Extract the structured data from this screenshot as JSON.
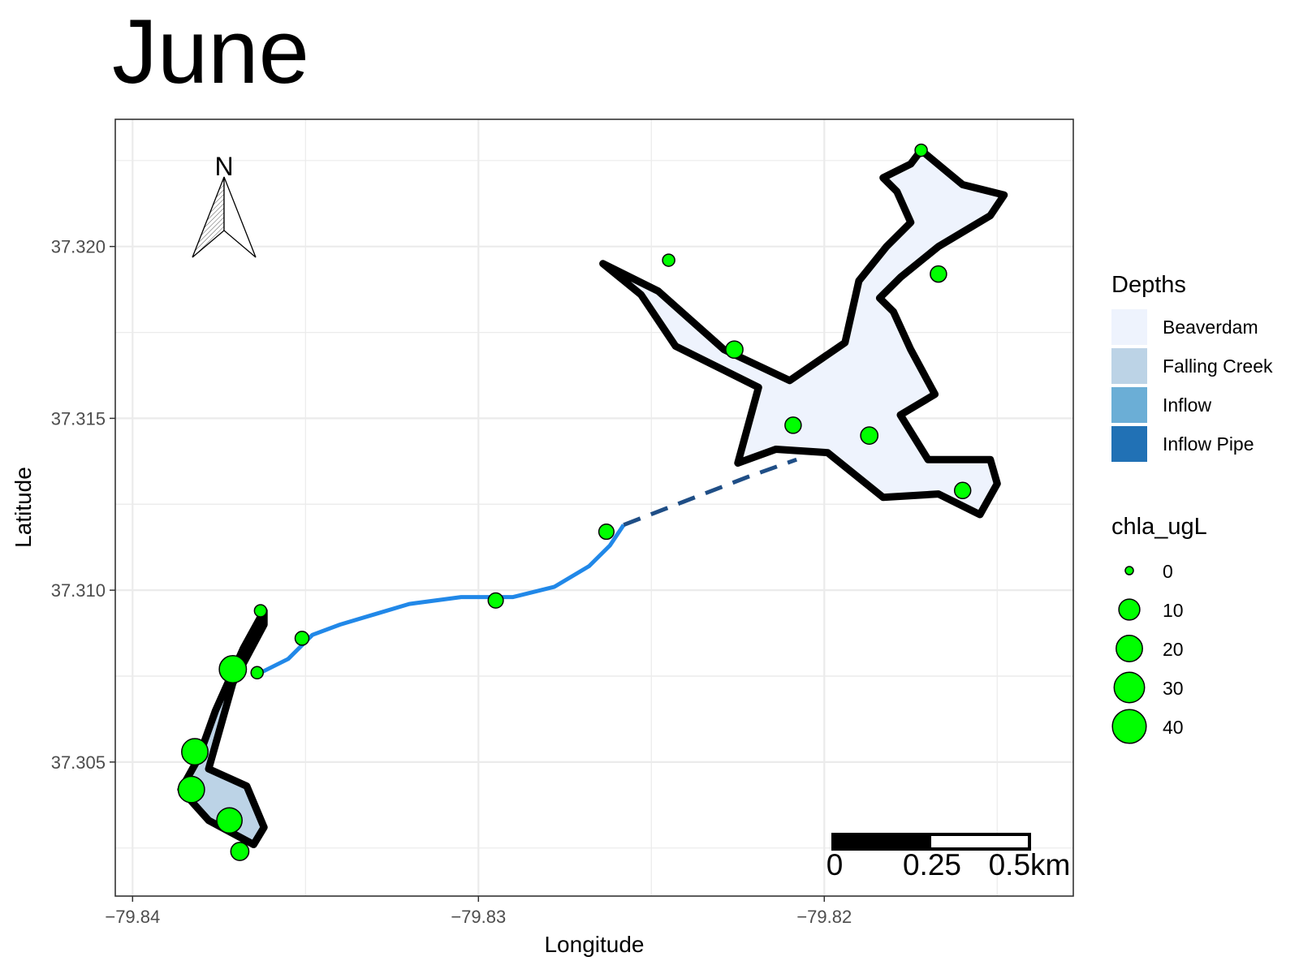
{
  "title": "June",
  "axes": {
    "x_label": "Longitude",
    "y_label": "Latitude",
    "x_ticks": [
      {
        "value": -79.84,
        "label": "−79.84"
      },
      {
        "value": -79.83,
        "label": "−79.83"
      },
      {
        "value": -79.82,
        "label": "−79.82"
      }
    ],
    "y_ticks": [
      {
        "value": 37.32,
        "label": "37.320"
      },
      {
        "value": 37.315,
        "label": "37.315"
      },
      {
        "value": 37.31,
        "label": "37.310"
      },
      {
        "value": 37.305,
        "label": "37.305"
      }
    ],
    "xlim": [
      -79.8405,
      -79.8128
    ],
    "ylim": [
      37.3011,
      37.3237
    ],
    "grid": true
  },
  "north_arrow": {
    "label": "N"
  },
  "scale_bar": {
    "labels": [
      "0",
      "0.25",
      "0.5km"
    ]
  },
  "legend": {
    "depths": {
      "title": "Depths",
      "items": [
        {
          "label": "Beaverdam",
          "color": "#eef3fd"
        },
        {
          "label": "Falling Creek",
          "color": "#bcd3e6"
        },
        {
          "label": "Inflow",
          "color": "#6baed6"
        },
        {
          "label": "Inflow Pipe",
          "color": "#2171b5"
        }
      ]
    },
    "chla": {
      "title": "chla_ugL",
      "items": [
        {
          "label": "0",
          "value": 0
        },
        {
          "label": "10",
          "value": 10
        },
        {
          "label": "20",
          "value": 20
        },
        {
          "label": "30",
          "value": 30
        },
        {
          "label": "40",
          "value": 40
        }
      ]
    }
  },
  "colors": {
    "point_fill": "#00ff00",
    "outline": "#000000",
    "stream": "#2188e8",
    "pipe": "#1f4e86",
    "grid": "#ebebeb"
  },
  "chart_data": {
    "type": "scatter",
    "map_title": "June",
    "reservoirs": [
      {
        "name": "Beaverdam",
        "polygon": [
          [
            -79.8172,
            37.3228
          ],
          [
            -79.8166,
            37.3223
          ],
          [
            -79.816,
            37.3218
          ],
          [
            -79.8148,
            37.3215
          ],
          [
            -79.8152,
            37.3209
          ],
          [
            -79.8167,
            37.32
          ],
          [
            -79.8178,
            37.3191
          ],
          [
            -79.8184,
            37.3185
          ],
          [
            -79.818,
            37.3181
          ],
          [
            -79.8175,
            37.317
          ],
          [
            -79.8168,
            37.3157
          ],
          [
            -79.8178,
            37.3151
          ],
          [
            -79.817,
            37.3138
          ],
          [
            -79.8152,
            37.3138
          ],
          [
            -79.815,
            37.3131
          ],
          [
            -79.8155,
            37.3122
          ],
          [
            -79.8167,
            37.3128
          ],
          [
            -79.8183,
            37.3127
          ],
          [
            -79.8199,
            37.314
          ],
          [
            -79.8214,
            37.3141
          ],
          [
            -79.8225,
            37.3137
          ],
          [
            -79.8219,
            37.3159
          ],
          [
            -79.8243,
            37.3171
          ],
          [
            -79.8253,
            37.3186
          ],
          [
            -79.8264,
            37.3195
          ],
          [
            -79.8248,
            37.3187
          ],
          [
            -79.8229,
            37.317
          ],
          [
            -79.821,
            37.3161
          ],
          [
            -79.8194,
            37.3172
          ],
          [
            -79.819,
            37.319
          ],
          [
            -79.8182,
            37.32
          ],
          [
            -79.8175,
            37.3207
          ],
          [
            -79.8179,
            37.3216
          ],
          [
            -79.8183,
            37.322
          ],
          [
            -79.8175,
            37.3224
          ]
        ]
      },
      {
        "name": "Falling Creek",
        "polygon": [
          [
            -79.8362,
            37.3094
          ],
          [
            -79.8368,
            37.3083
          ],
          [
            -79.8376,
            37.3065
          ],
          [
            -79.8381,
            37.3051
          ],
          [
            -79.8386,
            37.3042
          ],
          [
            -79.8378,
            37.3033
          ],
          [
            -79.8365,
            37.3026
          ],
          [
            -79.8362,
            37.3031
          ],
          [
            -79.8367,
            37.3043
          ],
          [
            -79.8378,
            37.3048
          ],
          [
            -79.8371,
            37.3073
          ],
          [
            -79.8362,
            37.309
          ]
        ]
      }
    ],
    "inflow_stream": [
      [
        -79.8363,
        37.3076
      ],
      [
        -79.8355,
        37.308
      ],
      [
        -79.8348,
        37.3087
      ],
      [
        -79.834,
        37.309
      ],
      [
        -79.833,
        37.3093
      ],
      [
        -79.832,
        37.3096
      ],
      [
        -79.8305,
        37.3098
      ],
      [
        -79.829,
        37.3098
      ],
      [
        -79.8278,
        37.3101
      ],
      [
        -79.8268,
        37.3107
      ],
      [
        -79.8262,
        37.3113
      ],
      [
        -79.8258,
        37.3119
      ]
    ],
    "inflow_pipe": [
      [
        -79.8258,
        37.3119
      ],
      [
        -79.824,
        37.3126
      ],
      [
        -79.8222,
        37.3133
      ],
      [
        -79.8208,
        37.3138
      ]
    ],
    "chla_points": [
      {
        "lon": -79.8172,
        "lat": 37.3228,
        "chla_ugL": 1
      },
      {
        "lon": -79.8167,
        "lat": 37.3192,
        "chla_ugL": 4
      },
      {
        "lon": -79.8245,
        "lat": 37.3196,
        "chla_ugL": 1
      },
      {
        "lon": -79.8226,
        "lat": 37.317,
        "chla_ugL": 5
      },
      {
        "lon": -79.8209,
        "lat": 37.3148,
        "chla_ugL": 4
      },
      {
        "lon": -79.8187,
        "lat": 37.3145,
        "chla_ugL": 5
      },
      {
        "lon": -79.816,
        "lat": 37.3129,
        "chla_ugL": 4
      },
      {
        "lon": -79.8263,
        "lat": 37.3117,
        "chla_ugL": 3
      },
      {
        "lon": -79.8295,
        "lat": 37.3097,
        "chla_ugL": 3
      },
      {
        "lon": -79.8351,
        "lat": 37.3086,
        "chla_ugL": 2
      },
      {
        "lon": -79.8363,
        "lat": 37.3094,
        "chla_ugL": 1
      },
      {
        "lon": -79.8364,
        "lat": 37.3076,
        "chla_ugL": 1
      },
      {
        "lon": -79.8371,
        "lat": 37.3077,
        "chla_ugL": 22
      },
      {
        "lon": -79.8382,
        "lat": 37.3053,
        "chla_ugL": 20
      },
      {
        "lon": -79.8383,
        "lat": 37.3042,
        "chla_ugL": 20
      },
      {
        "lon": -79.8372,
        "lat": 37.3033,
        "chla_ugL": 18
      },
      {
        "lon": -79.8369,
        "lat": 37.3024,
        "chla_ugL": 6
      }
    ]
  }
}
